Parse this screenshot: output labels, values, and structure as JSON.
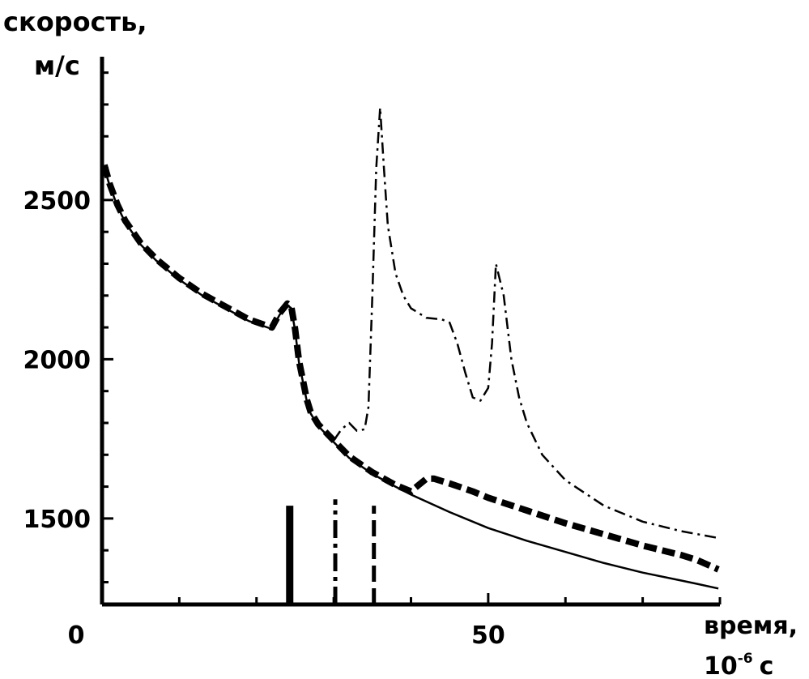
{
  "chart_data": {
    "type": "line",
    "ylabel_line1": "скорость,",
    "ylabel_line2": "м/с",
    "xlabel_line1": "время,",
    "xlabel_base": "10",
    "xlabel_exp": "-6",
    "xlabel_unit": "с",
    "xlim": [
      0,
      80
    ],
    "ylim": [
      1230,
      2950
    ],
    "x_major_ticks": [
      0,
      50
    ],
    "x_tick_labels": [
      "0",
      "50"
    ],
    "x_minor_ticks": [
      10,
      20,
      30,
      40,
      60,
      70,
      80
    ],
    "y_major_ticks": [
      1500,
      2000,
      2500
    ],
    "y_tick_labels": [
      "1500",
      "2000",
      "2500"
    ],
    "y_minor_ticks": [
      1300,
      1400,
      1600,
      1700,
      1800,
      1900,
      2100,
      2200,
      2300,
      2400,
      2600,
      2700,
      2800,
      2900
    ],
    "grid": false,
    "legend": "none",
    "series": [
      {
        "style": "solid",
        "color": "#000000",
        "x": [
          0.3,
          1,
          2,
          3,
          5,
          7,
          10,
          13,
          16,
          19,
          22,
          23,
          24,
          24.5,
          25,
          25.5,
          26,
          26.5,
          27,
          28,
          30,
          32,
          35,
          38,
          40,
          45,
          50,
          55,
          60,
          65,
          70,
          75,
          77,
          79.8
        ],
        "y": [
          2600,
          2545,
          2480,
          2430,
          2360,
          2310,
          2250,
          2200,
          2160,
          2120,
          2095,
          2140,
          2170,
          2160,
          2090,
          1990,
          1930,
          1870,
          1830,
          1790,
          1740,
          1690,
          1640,
          1600,
          1575,
          1520,
          1470,
          1430,
          1395,
          1360,
          1330,
          1305,
          1295,
          1280
        ]
      },
      {
        "style": "dashed",
        "color": "#000000",
        "x": [
          0.3,
          1,
          2,
          3,
          5,
          7,
          10,
          13,
          16,
          19,
          22,
          23,
          24,
          24.5,
          25,
          25.5,
          26,
          26.5,
          27,
          28,
          30,
          32,
          35,
          38,
          40,
          41,
          42,
          43,
          45,
          48,
          50,
          55,
          60,
          65,
          70,
          75,
          77,
          79.8
        ],
        "y": [
          2610,
          2550,
          2485,
          2435,
          2365,
          2315,
          2255,
          2205,
          2165,
          2125,
          2100,
          2145,
          2175,
          2165,
          2095,
          1995,
          1935,
          1875,
          1835,
          1795,
          1745,
          1695,
          1645,
          1605,
          1585,
          1605,
          1625,
          1625,
          1610,
          1585,
          1565,
          1525,
          1485,
          1450,
          1415,
          1385,
          1370,
          1340
        ]
      },
      {
        "style": "dashdot",
        "color": "#000000",
        "x": [
          30,
          31,
          32,
          33,
          34,
          34.5,
          35,
          35.5,
          36,
          36.5,
          37,
          38,
          39,
          40,
          42,
          44,
          45,
          46,
          47,
          48,
          49,
          50,
          50.5,
          51,
          52,
          53,
          54,
          55,
          57,
          60,
          65,
          70,
          75,
          79.5
        ],
        "y": [
          1745,
          1780,
          1800,
          1775,
          1780,
          1850,
          2200,
          2600,
          2790,
          2600,
          2420,
          2270,
          2200,
          2160,
          2130,
          2125,
          2115,
          2050,
          1960,
          1880,
          1870,
          1910,
          2050,
          2300,
          2200,
          2000,
          1880,
          1800,
          1700,
          1620,
          1540,
          1490,
          1460,
          1440
        ]
      }
    ],
    "markers": [
      {
        "style": "solid",
        "x": 24.3,
        "y_from": 1230,
        "y_to": 1540
      },
      {
        "style": "dashdot",
        "x": 30.2,
        "y_from": 1230,
        "y_to": 1560
      },
      {
        "style": "dashed",
        "x": 35.2,
        "y_from": 1230,
        "y_to": 1540
      }
    ]
  }
}
